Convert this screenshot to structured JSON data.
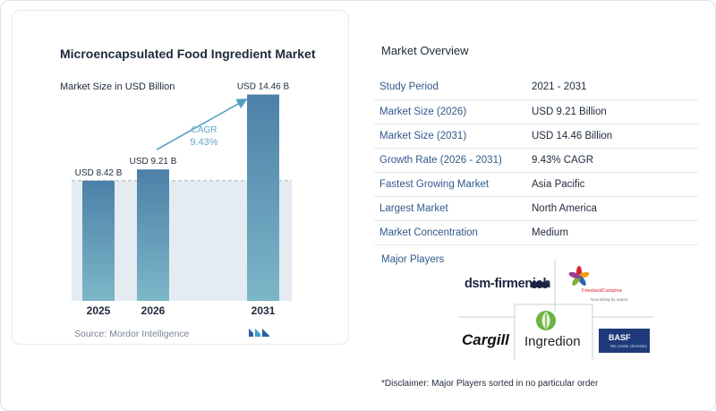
{
  "chart_data": {
    "type": "bar",
    "title": "Microencapsulated Food Ingredient Market",
    "subtitle": "Market Size in USD Billion",
    "categories": [
      "2025",
      "2026",
      "2031"
    ],
    "values": [
      8.42,
      9.21,
      14.46
    ],
    "data_labels": [
      "USD 8.42 B",
      "USD 9.21 B",
      "USD 14.46 B"
    ],
    "annotation": {
      "label": "CAGR",
      "value": "9.43%"
    },
    "ylim": [
      0,
      16
    ],
    "grid": false,
    "colors": {
      "bar_top": "#4d80a8",
      "bar_bottom": "#7bb7c8",
      "band": "#e4ecf2",
      "arrow": "#4f9fc0",
      "cagr": "#5fa7c7"
    }
  },
  "source": "Source: Mordor Intelligence",
  "overview": {
    "title": "Market Overview",
    "rows": [
      {
        "key": "Study Period",
        "value": "2021 - 2031"
      },
      {
        "key": "Market Size (2026)",
        "value": "USD 9.21 Billion"
      },
      {
        "key": "Market Size (2031)",
        "value": "USD 14.46 Billion"
      },
      {
        "key": "Growth Rate (2026 - 2031)",
        "value": "9.43% CAGR"
      },
      {
        "key": "Fastest Growing Market",
        "value": "Asia Pacific"
      },
      {
        "key": "Largest Market",
        "value": "North America"
      },
      {
        "key": "Market Concentration",
        "value": "Medium"
      }
    ]
  },
  "players": {
    "title": "Major Players",
    "logos": {
      "dsm": "dsm-firmenich",
      "frieslandcampina": "FrieslandCampina",
      "frieslandcampina_tag": "Nourishing by nature",
      "cargill": "Cargill",
      "ingredion": "Ingredion",
      "basf": "BASF",
      "basf_tag": "We create chemistry"
    }
  },
  "disclaimer": "*Disclaimer: Major Players sorted in no particular order"
}
